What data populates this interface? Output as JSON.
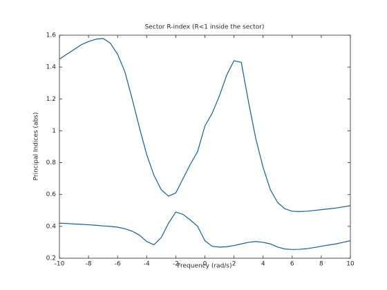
{
  "chart_data": {
    "type": "line",
    "title": "Sector R-index (R<1 inside the sector)",
    "x_label": "Frequency (rad/s)",
    "y_label": "Principal Indices (abs)",
    "x": [
      -10,
      -9.5,
      -9,
      -8.5,
      -8,
      -7.5,
      -7,
      -6.5,
      -6,
      -5.5,
      -5,
      -4.5,
      -4,
      -3.5,
      -3,
      -2.5,
      -2,
      -1.5,
      -1,
      -0.5,
      0,
      0.5,
      1,
      1.5,
      2,
      2.5,
      3,
      3.5,
      4,
      4.5,
      5,
      5.5,
      6,
      6.5,
      7,
      7.5,
      8,
      8.5,
      9,
      9.5,
      10
    ],
    "series": [
      {
        "color": "#0b5fa5",
        "values": [
          1.45,
          1.48,
          1.51,
          1.54,
          1.56,
          1.575,
          1.58,
          1.55,
          1.48,
          1.37,
          1.2,
          1.02,
          0.85,
          0.72,
          0.63,
          0.59,
          0.61,
          0.7,
          0.79,
          0.87,
          1.03,
          1.11,
          1.22,
          1.35,
          1.44,
          1.43,
          1.18,
          0.95,
          0.77,
          0.63,
          0.55,
          0.51,
          0.495,
          0.493,
          0.495,
          0.5,
          0.505,
          0.51,
          0.515,
          0.522,
          0.53
        ]
      },
      {
        "color": "#0b5fa5",
        "values": [
          0.42,
          0.418,
          0.415,
          0.413,
          0.41,
          0.407,
          0.403,
          0.4,
          0.395,
          0.385,
          0.37,
          0.345,
          0.305,
          0.285,
          0.33,
          0.42,
          0.49,
          0.475,
          0.44,
          0.4,
          0.31,
          0.275,
          0.27,
          0.272,
          0.28,
          0.29,
          0.3,
          0.305,
          0.3,
          0.29,
          0.27,
          0.258,
          0.255,
          0.256,
          0.26,
          0.267,
          0.275,
          0.283,
          0.29,
          0.3,
          0.31
        ]
      }
    ],
    "xlim": [
      -10,
      10
    ],
    "xticks": [
      -10,
      -8,
      -6,
      -4,
      -2,
      0,
      2,
      4,
      6,
      8,
      10
    ],
    "ylim": [
      0.2,
      1.6
    ],
    "yticks": [
      0.2,
      0.4,
      0.6,
      0.8,
      1,
      1.2,
      1.4,
      1.6
    ],
    "grid": false
  }
}
